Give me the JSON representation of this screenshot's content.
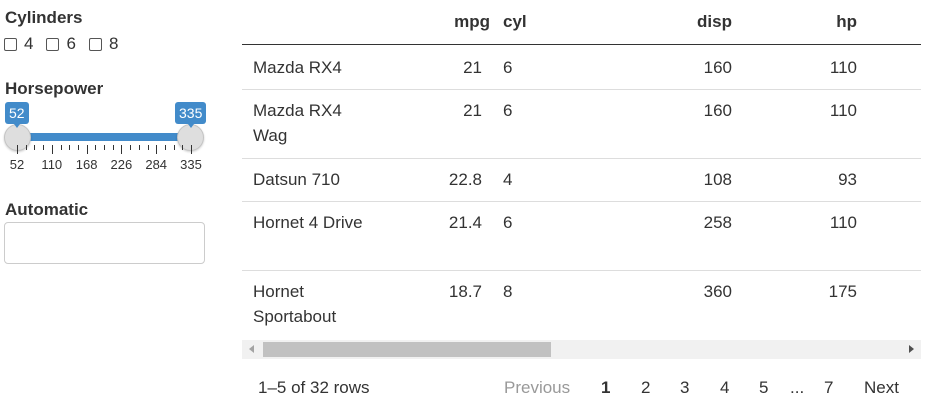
{
  "filters": {
    "cylinders": {
      "label": "Cylinders",
      "options": [
        {
          "label": "4",
          "checked": false
        },
        {
          "label": "6",
          "checked": false
        },
        {
          "label": "8",
          "checked": false
        }
      ]
    },
    "horsepower": {
      "label": "Horsepower",
      "min": 52,
      "max": 335,
      "from": 52,
      "to": 335,
      "from_label": "52",
      "to_label": "335",
      "grid_labels": [
        "52",
        "110",
        "168",
        "226",
        "284",
        "335"
      ],
      "accent_color": "#428bca"
    },
    "automatic": {
      "label": "Automatic",
      "value": ""
    }
  },
  "table": {
    "columns": [
      "",
      "mpg",
      "cyl",
      "disp",
      "hp"
    ],
    "rows": [
      {
        "name": "Mazda RX4",
        "mpg": "21",
        "cyl": "6",
        "disp": "160",
        "hp": "110"
      },
      {
        "name": "Mazda RX4 Wag",
        "mpg": "21",
        "cyl": "6",
        "disp": "160",
        "hp": "110"
      },
      {
        "name": "Datsun 710",
        "mpg": "22.8",
        "cyl": "4",
        "disp": "108",
        "hp": "93"
      },
      {
        "name": "Hornet 4 Drive",
        "mpg": "21.4",
        "cyl": "6",
        "disp": "258",
        "hp": "110"
      },
      {
        "name": "Hornet Sportabout",
        "mpg": "18.7",
        "cyl": "8",
        "disp": "360",
        "hp": "175"
      }
    ]
  },
  "footer": {
    "info": "1–5 of 32 rows",
    "previous": "Previous",
    "pages": [
      "1",
      "2",
      "3",
      "4",
      "5",
      "...",
      "7"
    ],
    "current_page": "1",
    "next": "Next"
  }
}
